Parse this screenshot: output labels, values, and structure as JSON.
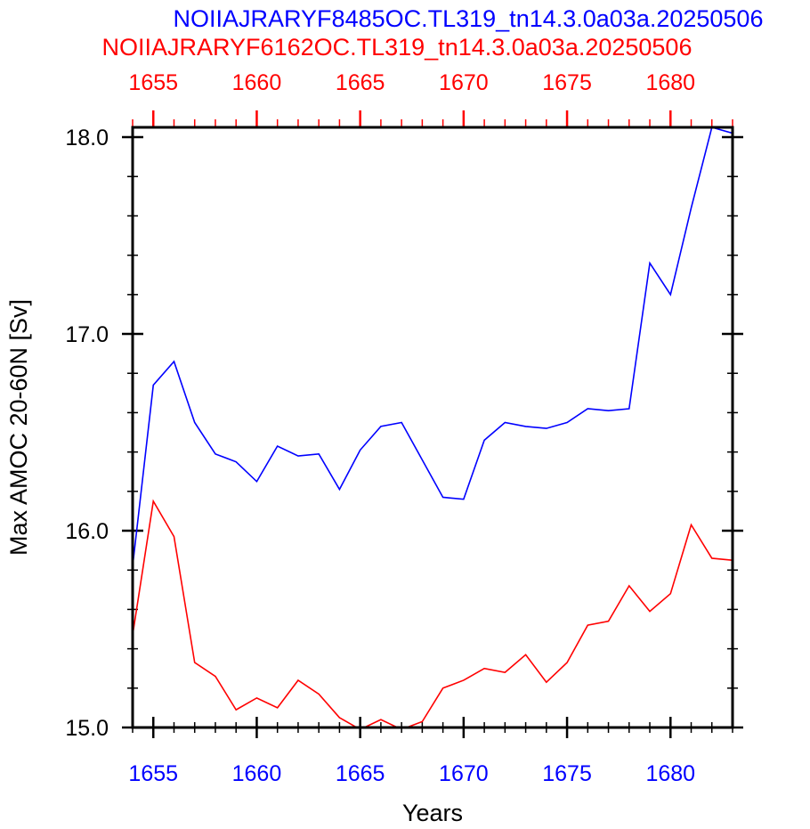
{
  "chart_data": {
    "type": "line",
    "titles": [
      {
        "text": "NOIIAJRARYF8485OC.TL319_tn14.3.0a03a.20250506",
        "color": "#0000ff"
      },
      {
        "text": "NOIIAJRARYF6162OC.TL319_tn14.3.0a03a.20250506",
        "color": "#ff0000"
      }
    ],
    "xlabel": "Years",
    "ylabel": "Max AMOC 20-60N [Sv]",
    "xlim": [
      1654,
      1683
    ],
    "ylim": [
      15.0,
      18.05
    ],
    "bottom_axis": {
      "color": "#0000ff",
      "ticks": [
        1655,
        1660,
        1665,
        1670,
        1675,
        1680
      ],
      "labels": [
        "1655",
        "1660",
        "1665",
        "1670",
        "1675",
        "1680"
      ]
    },
    "top_axis": {
      "color": "#ff0000",
      "ticks": [
        1655,
        1660,
        1665,
        1670,
        1675,
        1680
      ],
      "labels": [
        "1655",
        "1660",
        "1665",
        "1670",
        "1675",
        "1680"
      ]
    },
    "y_ticks": [
      15.0,
      16.0,
      17.0,
      18.0
    ],
    "y_labels": [
      "15.0",
      "16.0",
      "17.0",
      "18.0"
    ],
    "x": [
      1654,
      1655,
      1656,
      1657,
      1658,
      1659,
      1660,
      1661,
      1662,
      1663,
      1664,
      1665,
      1666,
      1667,
      1668,
      1669,
      1670,
      1671,
      1672,
      1673,
      1674,
      1675,
      1676,
      1677,
      1678,
      1679,
      1680,
      1681,
      1682,
      1683
    ],
    "series": [
      {
        "color": "#0000ff",
        "values": [
          15.82,
          16.74,
          16.86,
          16.55,
          16.39,
          16.35,
          16.25,
          16.43,
          16.38,
          16.39,
          16.21,
          16.41,
          16.53,
          16.55,
          16.36,
          16.17,
          16.16,
          16.46,
          16.55,
          16.53,
          16.52,
          16.55,
          16.62,
          16.61,
          16.62,
          17.36,
          17.2,
          17.64,
          18.05,
          18.02
        ]
      },
      {
        "color": "#ff0000",
        "values": [
          15.47,
          16.15,
          15.97,
          15.33,
          15.26,
          15.09,
          15.15,
          15.1,
          15.24,
          15.17,
          15.05,
          14.99,
          15.04,
          14.99,
          15.03,
          15.2,
          15.24,
          15.3,
          15.28,
          15.37,
          15.23,
          15.33,
          15.52,
          15.54,
          15.72,
          15.59,
          15.68,
          16.03,
          15.86,
          15.85
        ]
      }
    ]
  }
}
